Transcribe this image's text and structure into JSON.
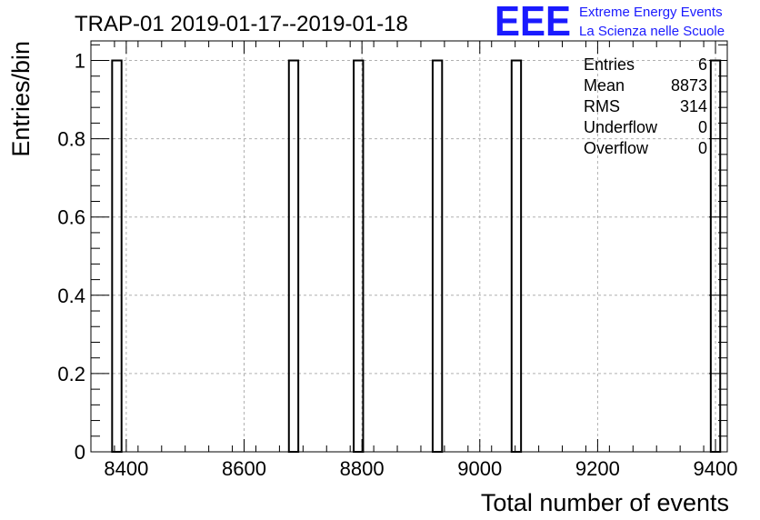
{
  "chart_data": {
    "type": "bar",
    "title": "TRAP-01 2019-01-17--2019-01-18",
    "xlabel": "Total number of events",
    "ylabel": "Entries/bin",
    "xlim": [
      8340,
      9420
    ],
    "ylim": [
      0,
      1.05
    ],
    "bin_width": 16,
    "x_ticks": [
      "8400",
      "8600",
      "8800",
      "9000",
      "9200",
      "9400"
    ],
    "y_ticks": [
      "0",
      "0.2",
      "0.4",
      "0.6",
      "0.8",
      "1"
    ],
    "grid": true,
    "bars": [
      {
        "x": 8376,
        "value": 1
      },
      {
        "x": 8676,
        "value": 1
      },
      {
        "x": 8786,
        "value": 1
      },
      {
        "x": 8920,
        "value": 1
      },
      {
        "x": 9054,
        "value": 1
      },
      {
        "x": 9392,
        "value": 1
      }
    ]
  },
  "stats": {
    "rows": [
      {
        "label": "Entries",
        "value": "6"
      },
      {
        "label": "Mean",
        "value": "8873"
      },
      {
        "label": "RMS",
        "value": "314"
      },
      {
        "label": "Underflow",
        "value": "0"
      },
      {
        "label": "Overflow",
        "value": "0"
      }
    ]
  },
  "logo": {
    "mark": "EEE",
    "line1": "Extreme Energy Events",
    "line2": "La Scienza nelle Scuole",
    "color": "#1a1aff"
  }
}
